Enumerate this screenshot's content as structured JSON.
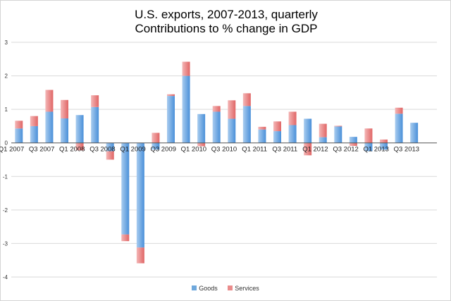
{
  "chart_data": {
    "type": "bar",
    "stacked": true,
    "title": "U.S. exports, 2007-2013, quarterly",
    "subtitle": "Contributions to % change in GDP",
    "xlabel": "",
    "ylabel": "",
    "ylim": [
      -4,
      3
    ],
    "yticks": [
      3,
      2,
      1,
      0,
      -1,
      -2,
      -3,
      -4
    ],
    "grid": true,
    "legend_position": "bottom",
    "categories": [
      "Q1 2007",
      "Q2 2007",
      "Q3 2007",
      "Q4 2007",
      "Q1 2008",
      "Q2 2008",
      "Q3 2008",
      "Q4 2008",
      "Q1 2009",
      "Q2 2009",
      "Q3 2009",
      "Q4 2009",
      "Q1 2010",
      "Q2 2010",
      "Q3 2010",
      "Q4 2010",
      "Q1 2011",
      "Q2 2011",
      "Q3 2011",
      "Q4 2011",
      "Q1 2012",
      "Q2 2012",
      "Q3 2012",
      "Q4 2012",
      "Q1 2013",
      "Q2 2013",
      "Q3 2013",
      "Q4 2013"
    ],
    "tick_labels": [
      "Q1 2007",
      "",
      "Q3 2007",
      "",
      "Q1 2008",
      "",
      "Q3 2008",
      "",
      "Q1 2009",
      "",
      "Q3 2009",
      "",
      "Q1 2010",
      "",
      "Q3 2010",
      "",
      "Q1 2011",
      "",
      "Q3 2011",
      "",
      "Q1 2012",
      "",
      "Q3 2012",
      "",
      "Q1 2013",
      "",
      "Q3 2013",
      ""
    ],
    "series": [
      {
        "name": "Goods",
        "color": "#6fa8dc",
        "values": [
          0.43,
          0.5,
          0.93,
          0.73,
          0.83,
          1.07,
          -0.25,
          -2.73,
          -3.12,
          -0.2,
          1.4,
          2.0,
          0.86,
          0.93,
          0.72,
          1.1,
          0.4,
          0.35,
          0.53,
          0.72,
          0.17,
          0.49,
          0.18,
          -0.25,
          -0.2,
          0.87,
          0.6,
          0
        ]
      },
      {
        "name": "Services",
        "color": "#ea8c8c",
        "values": [
          0.23,
          0.3,
          0.65,
          0.55,
          -0.22,
          0.35,
          -0.25,
          -0.2,
          -0.47,
          0.3,
          0.05,
          0.42,
          -0.1,
          0.17,
          0.55,
          0.38,
          0.08,
          0.29,
          0.4,
          -0.37,
          0.4,
          0.02,
          -0.09,
          0.43,
          0.1,
          0.18,
          0,
          0
        ]
      }
    ]
  }
}
